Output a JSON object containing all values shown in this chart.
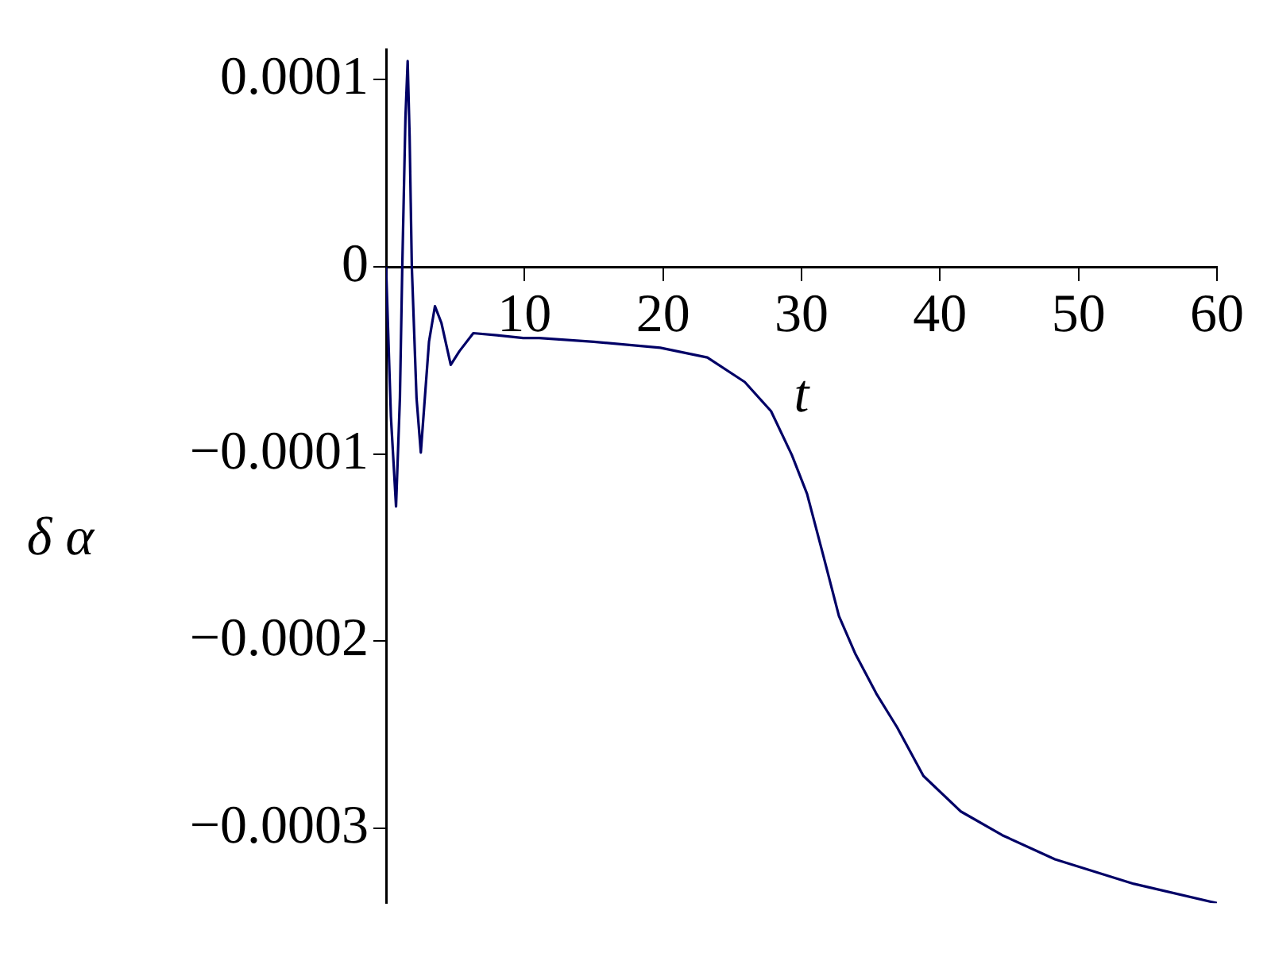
{
  "chart_data": {
    "type": "line",
    "xlabel": "t",
    "ylabel": "δ α",
    "series": [
      {
        "color": "#000066",
        "x": [
          0,
          0.35,
          0.72,
          1.0,
          1.17,
          1.4,
          1.56,
          1.7,
          1.86,
          2.2,
          2.51,
          2.8,
          3.1,
          3.53,
          4.0,
          4.67,
          5.3,
          6.3,
          8.0,
          9.9,
          11.06,
          15,
          19.8,
          23.2,
          25.9,
          27.8,
          29.3,
          30.4,
          31.6,
          32.7,
          33.9,
          35.4,
          36.9,
          38.8,
          41.5,
          44.5,
          48.3,
          54.0,
          60
        ],
        "values": [
          0,
          -8e-05,
          -0.000128,
          -7e-05,
          0,
          8e-05,
          0.00011,
          7e-05,
          0,
          -7e-05,
          -9.92e-05,
          -7e-05,
          -4e-05,
          -2.1e-05,
          -3e-05,
          -5.23e-05,
          -4.5e-05,
          -3.54e-05,
          -3.65e-05,
          -3.8e-05,
          -3.8e-05,
          -4e-05,
          -4.32e-05,
          -4.84e-05,
          -6.15e-05,
          -7.71e-05,
          -0.0001005,
          -0.0001213,
          -0.000155,
          -0.0001865,
          -0.000207,
          -0.000228,
          -0.000246,
          -0.000272,
          -0.000291,
          -0.0003037,
          -0.0003166,
          -0.0003297,
          -0.00034
        ]
      }
    ],
    "xlim": [
      0,
      60
    ],
    "xticks": [
      10,
      20,
      30,
      40,
      50,
      60
    ],
    "ylim": [
      -0.00034,
      0.000116
    ],
    "yticks": [
      0.0001,
      0,
      {
        "value": -0.0001,
        "label": "−0.0001"
      },
      {
        "value": -0.0002,
        "label": "−0.0002"
      },
      {
        "value": -0.0003,
        "label": "−0.0003"
      }
    ],
    "grid": false,
    "legend": false,
    "marker": "none",
    "line_style": "solid"
  }
}
